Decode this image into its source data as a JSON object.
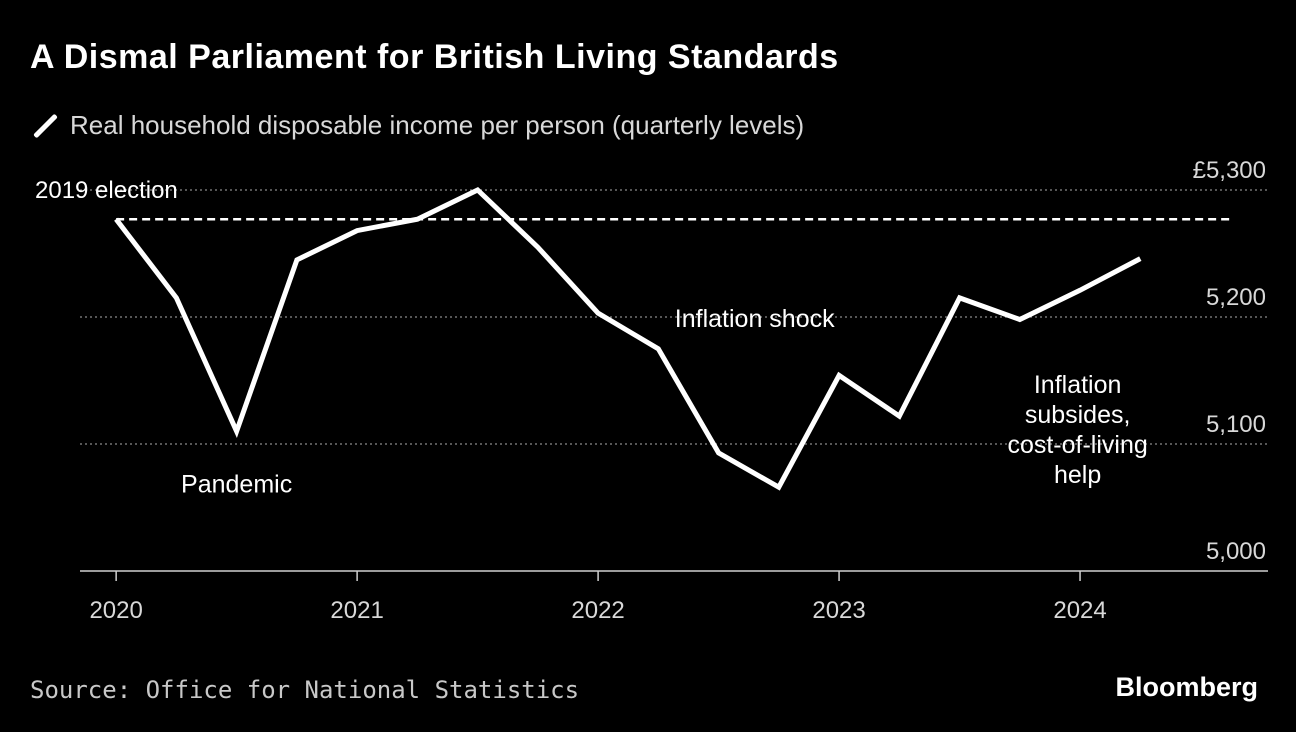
{
  "header": {
    "title": "A Dismal Parliament for British Living Standards",
    "legend_label": "Real household disposable income per person (quarterly levels)"
  },
  "footer": {
    "source": "Source: Office for National Statistics",
    "brand": "Bloomberg"
  },
  "chart_data": {
    "type": "line",
    "title": "A Dismal Parliament for British Living Standards",
    "xlabel": "",
    "ylabel": "",
    "x_ticks": [
      2020,
      2021,
      2022,
      2023,
      2024
    ],
    "y_ticks": [
      {
        "value": 5000,
        "label": "5,000"
      },
      {
        "value": 5100,
        "label": "5,100"
      },
      {
        "value": 5200,
        "label": "5,200"
      },
      {
        "value": 5300,
        "label": "£5,300"
      }
    ],
    "ylim": [
      5000,
      5300
    ],
    "xlim": [
      2019.85,
      2024.78
    ],
    "grid": true,
    "series": [
      {
        "name": "Real household disposable income per person (quarterly levels)",
        "color": "#ffffff",
        "x": [
          2020.0,
          2020.25,
          2020.5,
          2020.75,
          2021.0,
          2021.25,
          2021.5,
          2021.75,
          2022.0,
          2022.25,
          2022.5,
          2022.75,
          2023.0,
          2023.25,
          2023.5,
          2023.75,
          2024.0,
          2024.25
        ],
        "values": [
          5277,
          5215,
          5110,
          5245,
          5268,
          5277,
          5300,
          5255,
          5203,
          5175,
          5093,
          5066,
          5154,
          5122,
          5215,
          5198,
          5221,
          5246
        ]
      }
    ],
    "reference_line": {
      "label": "2019 election",
      "value": 5277
    },
    "annotations": [
      {
        "text": "Pandemic",
        "x": 2020.5,
        "y": 5062
      },
      {
        "text": "Inflation shock",
        "x": 2022.65,
        "y": 5192
      },
      {
        "text": "Inflation subsides, cost-of-living help",
        "lines": [
          "Inflation",
          "subsides,",
          "cost-of-living",
          "help"
        ],
        "x": 2023.99,
        "y": 5140
      }
    ]
  }
}
